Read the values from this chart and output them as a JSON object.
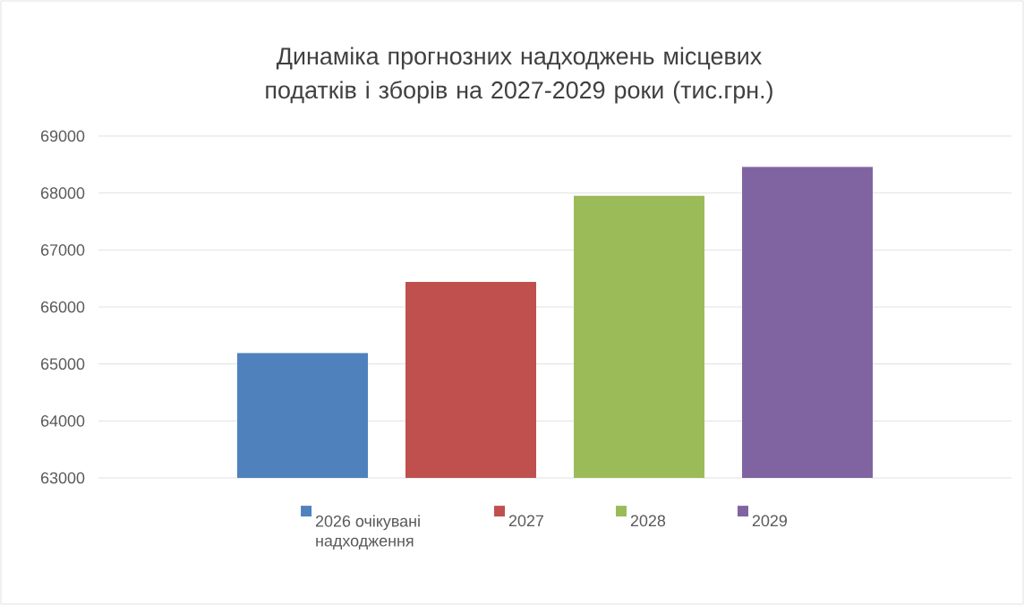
{
  "chart_data": {
    "type": "bar",
    "title": "Динаміка прогнозних надходжень місцевих податків і зборів на 2027-2029 роки (тис.грн.)",
    "categories": [
      null
    ],
    "series": [
      {
        "name": "2026 очікувані надходження",
        "color": "#4f81bd",
        "values": [
          65190
        ]
      },
      {
        "name": "2027",
        "color": "#c0504d",
        "values": [
          66440
        ]
      },
      {
        "name": "2028",
        "color": "#9bbb59",
        "values": [
          67950
        ]
      },
      {
        "name": "2029",
        "color": "#8064a2",
        "values": [
          68460
        ]
      }
    ],
    "ylim": [
      63000,
      69000
    ],
    "yticks": [
      63000,
      64000,
      65000,
      66000,
      67000,
      68000,
      69000
    ],
    "grid": "y",
    "legend": "bottom",
    "tick_labels": "y"
  }
}
